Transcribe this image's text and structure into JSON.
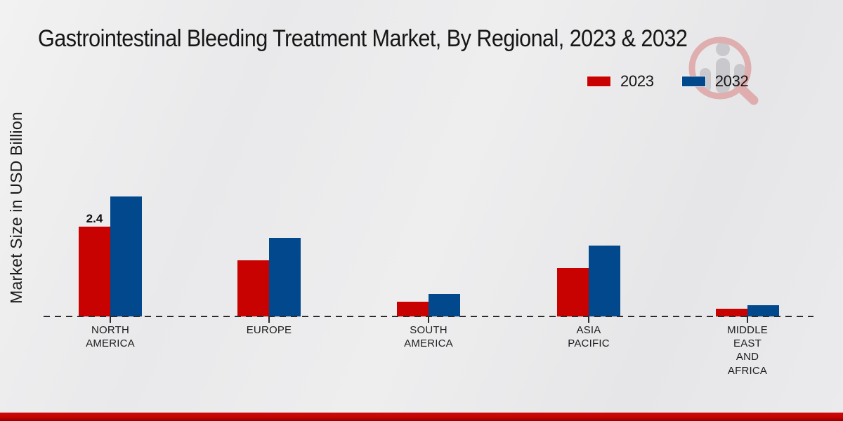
{
  "title": "Gastrointestinal Bleeding Treatment Market, By Regional, 2023 & 2032",
  "y_axis_label": "Market Size in USD Billion",
  "legend": [
    {
      "label": "2023",
      "color": "#c80101"
    },
    {
      "label": "2032",
      "color": "#02488c"
    }
  ],
  "watermark": "market-research-future-logo",
  "accent_bar_color": "#c40404",
  "chart_data": {
    "type": "bar",
    "title": "Gastrointestinal Bleeding Treatment Market, By Regional, 2023 & 2032",
    "xlabel": "",
    "ylabel": "Market Size in USD Billion",
    "categories": [
      "North America",
      "Europe",
      "South America",
      "Asia Pacific",
      "Middle East and Africa"
    ],
    "category_label_lines": [
      "NORTH\nAMERICA",
      "EUROPE",
      "SOUTH\nAMERICA",
      "ASIA\nPACIFIC",
      "MIDDLE\nEAST\nAND\nAFRICA"
    ],
    "series": [
      {
        "name": "2023",
        "color": "#c80101",
        "values": [
          2.4,
          1.5,
          0.4,
          1.3,
          0.2
        ]
      },
      {
        "name": "2032",
        "color": "#02488c",
        "values": [
          3.2,
          2.1,
          0.6,
          1.9,
          0.3
        ]
      }
    ],
    "annotation": {
      "series": "2023",
      "category": "North America",
      "text": "2.4"
    },
    "ylim": [
      0,
      3.6
    ],
    "grid": false,
    "baseline_style": "dashed",
    "legend_position": "top-right"
  }
}
